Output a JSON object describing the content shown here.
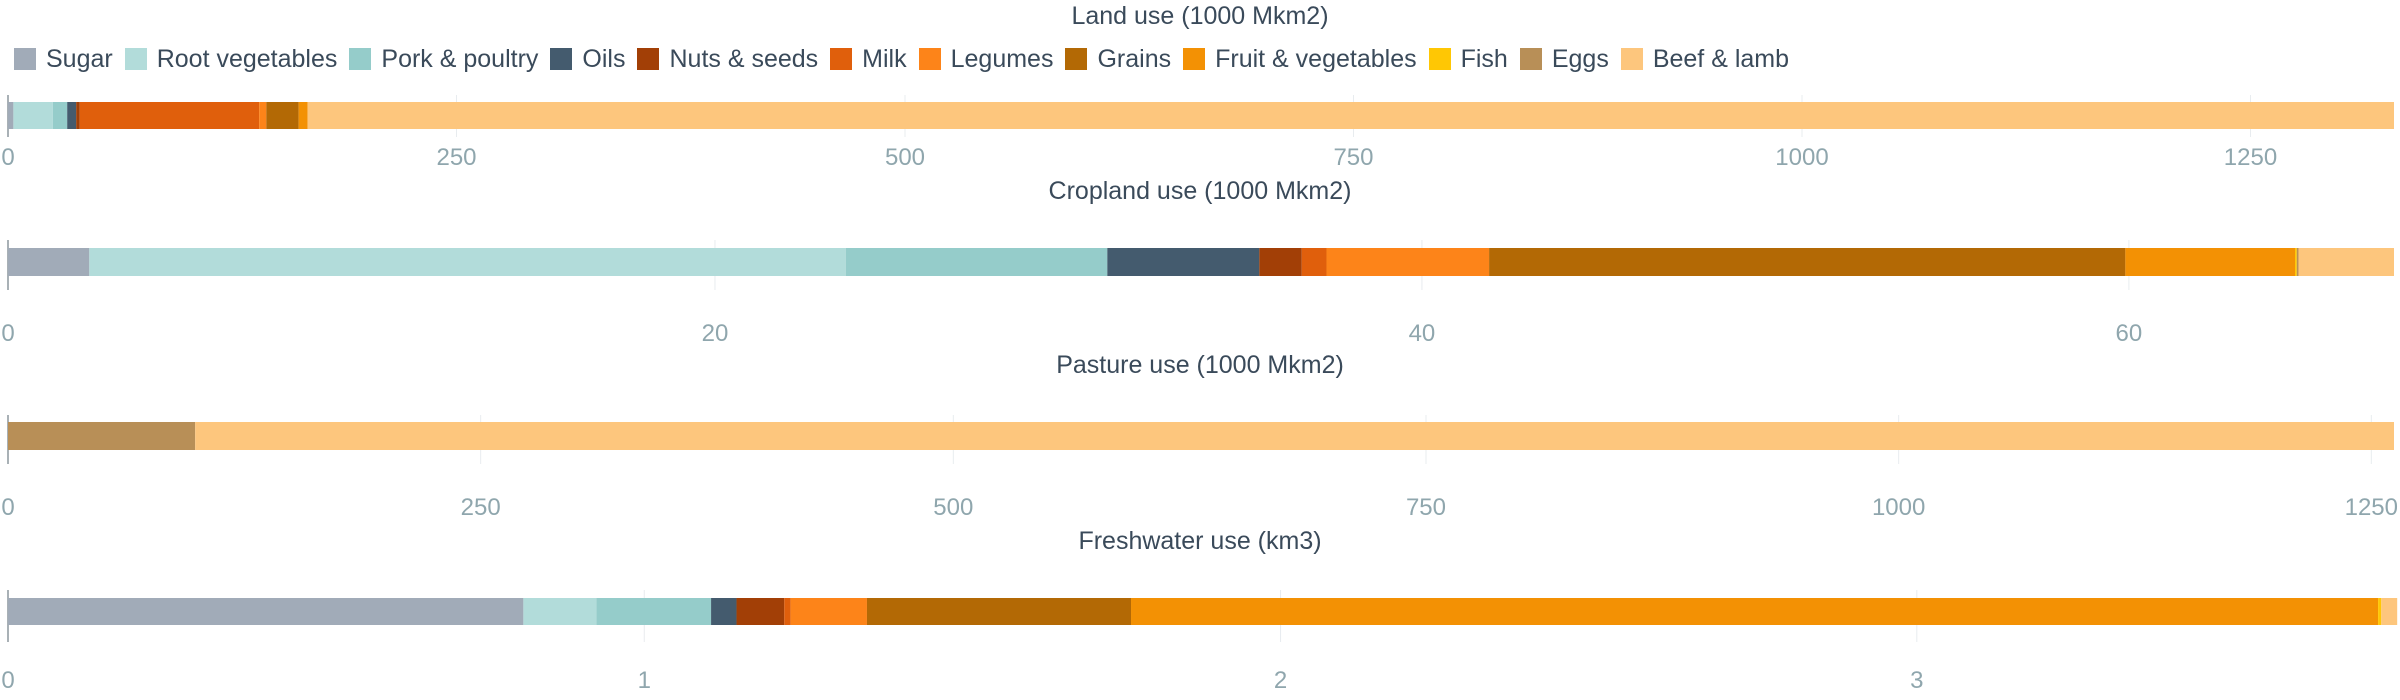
{
  "legend": [
    {
      "name": "Sugar",
      "color": "#a1abb8"
    },
    {
      "name": "Root vegetables",
      "color": "#b2dcda"
    },
    {
      "name": "Pork & poultry",
      "color": "#95ccca"
    },
    {
      "name": "Oils",
      "color": "#445b6e"
    },
    {
      "name": "Nuts & seeds",
      "color": "#a23f06"
    },
    {
      "name": "Milk",
      "color": "#e05f0c"
    },
    {
      "name": "Legumes",
      "color": "#fd8419"
    },
    {
      "name": "Grains",
      "color": "#b36905"
    },
    {
      "name": "Fruit & vegetables",
      "color": "#f39104"
    },
    {
      "name": "Fish",
      "color": "#ffc704"
    },
    {
      "name": "Eggs",
      "color": "#b88f57"
    },
    {
      "name": "Beef & lamb",
      "color": "#fdc67d"
    }
  ],
  "chart_data": [
    {
      "type": "bar",
      "orientation": "horizontal-stacked",
      "title": "Land use (1000 Mkm2)",
      "xlim": [
        0,
        1330
      ],
      "ticks": [
        0,
        250,
        500,
        750,
        1000,
        1250
      ],
      "series": [
        {
          "name": "Sugar",
          "value": 3
        },
        {
          "name": "Root vegetables",
          "value": 22
        },
        {
          "name": "Pork & poultry",
          "value": 8
        },
        {
          "name": "Oils",
          "value": 5
        },
        {
          "name": "Nuts & seeds",
          "value": 2
        },
        {
          "name": "Milk",
          "value": 100
        },
        {
          "name": "Legumes",
          "value": 4
        },
        {
          "name": "Grains",
          "value": 18
        },
        {
          "name": "Fruit & vegetables",
          "value": 5
        },
        {
          "name": "Fish",
          "value": 0
        },
        {
          "name": "Eggs",
          "value": 0
        },
        {
          "name": "Beef & lamb",
          "value": 1163
        }
      ]
    },
    {
      "type": "bar",
      "orientation": "horizontal-stacked",
      "title": "Cropland use (1000 Mkm2)",
      "xlim": [
        0,
        67.5
      ],
      "ticks": [
        0,
        20,
        40,
        60
      ],
      "series": [
        {
          "name": "Sugar",
          "value": 2.3
        },
        {
          "name": "Root vegetables",
          "value": 21.4
        },
        {
          "name": "Pork & poultry",
          "value": 7.4
        },
        {
          "name": "Oils",
          "value": 4.3
        },
        {
          "name": "Nuts & seeds",
          "value": 1.2
        },
        {
          "name": "Milk",
          "value": 0.7
        },
        {
          "name": "Legumes",
          "value": 4.6
        },
        {
          "name": "Grains",
          "value": 18.0
        },
        {
          "name": "Fruit & vegetables",
          "value": 4.8
        },
        {
          "name": "Fish",
          "value": 0.05
        },
        {
          "name": "Eggs",
          "value": 0.05
        },
        {
          "name": "Beef & lamb",
          "value": 2.7
        }
      ]
    },
    {
      "type": "bar",
      "orientation": "horizontal-stacked",
      "title": "Pasture use (1000 Mkm2)",
      "xlim": [
        0,
        1262
      ],
      "ticks": [
        0,
        250,
        500,
        750,
        1000,
        1250
      ],
      "series": [
        {
          "name": "Sugar",
          "value": 0
        },
        {
          "name": "Root vegetables",
          "value": 0
        },
        {
          "name": "Pork & poultry",
          "value": 0
        },
        {
          "name": "Oils",
          "value": 0
        },
        {
          "name": "Nuts & seeds",
          "value": 0
        },
        {
          "name": "Milk",
          "value": 0
        },
        {
          "name": "Legumes",
          "value": 0
        },
        {
          "name": "Grains",
          "value": 0
        },
        {
          "name": "Fruit & vegetables",
          "value": 0
        },
        {
          "name": "Fish",
          "value": 0
        },
        {
          "name": "Eggs",
          "value": 99
        },
        {
          "name": "Beef & lamb",
          "value": 1163
        }
      ]
    },
    {
      "type": "bar",
      "orientation": "horizontal-stacked",
      "title": "Freshwater use (km3)",
      "xlim": [
        0,
        3.75
      ],
      "ticks": [
        0,
        1,
        2,
        3
      ],
      "series": [
        {
          "name": "Sugar",
          "value": 0.81
        },
        {
          "name": "Root vegetables",
          "value": 0.115
        },
        {
          "name": "Pork & poultry",
          "value": 0.18
        },
        {
          "name": "Oils",
          "value": 0.04
        },
        {
          "name": "Nuts & seeds",
          "value": 0.075
        },
        {
          "name": "Milk",
          "value": 0.01
        },
        {
          "name": "Legumes",
          "value": 0.12
        },
        {
          "name": "Grains",
          "value": 0.415
        },
        {
          "name": "Fruit & vegetables",
          "value": 1.96
        },
        {
          "name": "Fish",
          "value": 0.005
        },
        {
          "name": "Eggs",
          "value": 0
        },
        {
          "name": "Beef & lamb",
          "value": 0.025
        }
      ]
    }
  ]
}
